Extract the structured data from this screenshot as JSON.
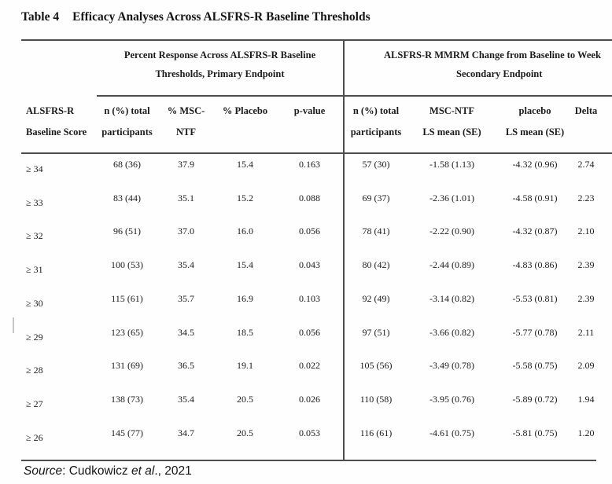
{
  "caption": {
    "tag": "Table 4",
    "title": "Efficacy Analyses Across ALSFRS-R Baseline Thresholds"
  },
  "table": {
    "sections": [
      {
        "line1": "Percent Response Across ALSFRS-R Baseline",
        "line2": "Thresholds, Primary Endpoint"
      },
      {
        "line1": "ALSFRS-R MMRM Change from Baseline to Week",
        "line2": "Secondary Endpoint"
      }
    ],
    "columns": [
      {
        "line1": "ALSFRS-R",
        "line2": "Baseline Score"
      },
      {
        "line1": "n (%) total",
        "line2": "participants"
      },
      {
        "line1": "% MSC-",
        "line2": "NTF"
      },
      {
        "line1": "% Placebo",
        "line2": ""
      },
      {
        "line1": "p-value",
        "line2": ""
      },
      {
        "line1": "n (%) total",
        "line2": "participants"
      },
      {
        "line1": "MSC-NTF",
        "line2": "LS mean (SE)"
      },
      {
        "line1": "placebo",
        "line2": "LS mean (SE)"
      },
      {
        "line1": "Delta",
        "line2": ""
      }
    ],
    "rows": [
      [
        "≥ 34",
        "68 (36)",
        "37.9",
        "15.4",
        "0.163",
        "57 (30)",
        "-1.58 (1.13)",
        "-4.32 (0.96)",
        "2.74"
      ],
      [
        "≥ 33",
        "83 (44)",
        "35.1",
        "15.2",
        "0.088",
        "69 (37)",
        "-2.36 (1.01)",
        "-4.58 (0.91)",
        "2.23"
      ],
      [
        "≥ 32",
        "96 (51)",
        "37.0",
        "16.0",
        "0.056",
        "78 (41)",
        "-2.22 (0.90)",
        "-4.32 (0.87)",
        "2.10"
      ],
      [
        "≥ 31",
        "100 (53)",
        "35.4",
        "15.4",
        "0.043",
        "80 (42)",
        "-2.44 (0.89)",
        "-4.83 (0.86)",
        "2.39"
      ],
      [
        "≥ 30",
        "115 (61)",
        "35.7",
        "16.9",
        "0.103",
        "92 (49)",
        "-3.14 (0.82)",
        "-5.53 (0.81)",
        "2.39"
      ],
      [
        "≥ 29",
        "123 (65)",
        "34.5",
        "18.5",
        "0.056",
        "97 (51)",
        "-3.66 (0.82)",
        "-5.77 (0.78)",
        "2.11"
      ],
      [
        "≥ 28",
        "131 (69)",
        "36.5",
        "19.1",
        "0.022",
        "105 (56)",
        "-3.49 (0.78)",
        "-5.58 (0.75)",
        "2.09"
      ],
      [
        "≥ 27",
        "138 (73)",
        "35.4",
        "20.5",
        "0.026",
        "110 (58)",
        "-3.95 (0.76)",
        "-5.89 (0.72)",
        "1.94"
      ],
      [
        "≥ 26",
        "145 (77)",
        "34.7",
        "20.5",
        "0.053",
        "116 (61)",
        "-4.61 (0.75)",
        "-5.81 (0.75)",
        "1.20"
      ]
    ]
  },
  "source": {
    "label_italic": "Source",
    "text_1": ": Cudkowicz ",
    "etal_italic": "et al",
    "text_2": "., 2021"
  }
}
